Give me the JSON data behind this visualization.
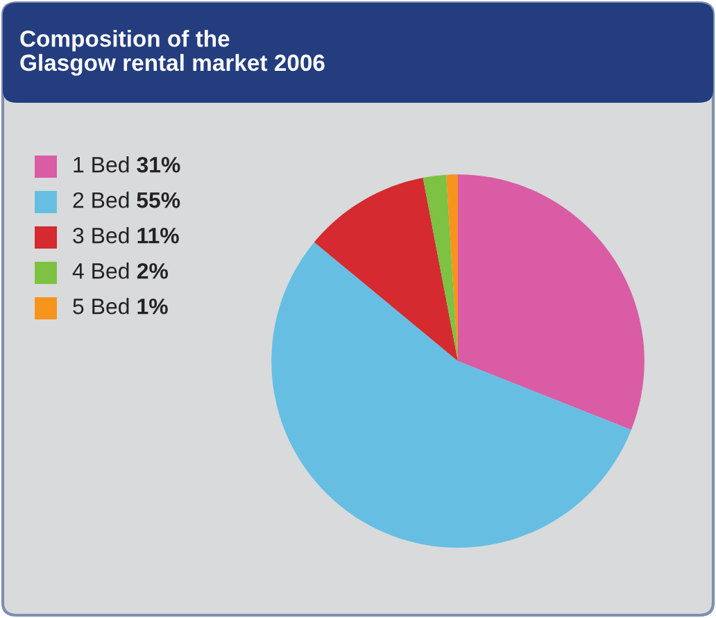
{
  "chart_data": {
    "type": "pie",
    "title": "Composition of the\nGlasgow rental market 2006",
    "categories": [
      "1 Bed",
      "2 Bed",
      "3 Bed",
      "4 Bed",
      "5 Bed"
    ],
    "values": [
      31,
      55,
      11,
      2,
      1
    ],
    "value_labels": [
      "31%",
      "55%",
      "11%",
      "2%",
      "1%"
    ],
    "colors": [
      "#d95ca5",
      "#66bfe3",
      "#d42a30",
      "#7dc242",
      "#f7941d"
    ],
    "legend": "top left"
  }
}
